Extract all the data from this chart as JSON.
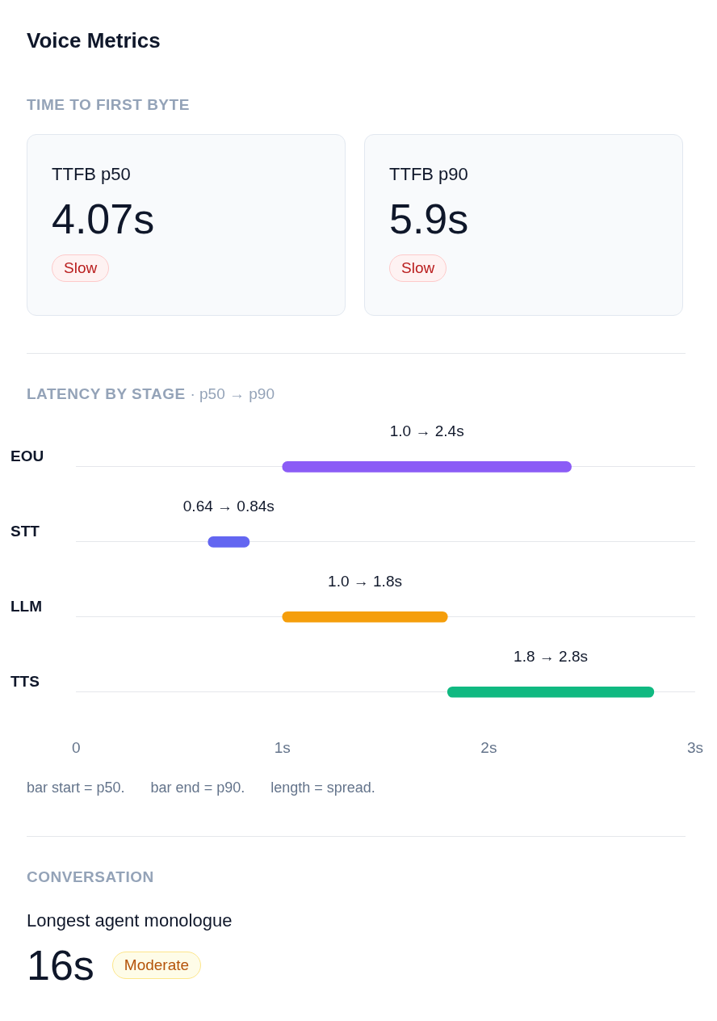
{
  "chart_data": [
    {
      "type": "other",
      "title": "Voice Metrics",
      "subtitle": "TIME TO FIRST BYTE",
      "categories": [
        "TTFB p50",
        "TTFB p90"
      ],
      "values": [
        4.07,
        5.9
      ],
      "value_labels": [
        "4.07s",
        "5.9s"
      ],
      "annotations": [
        "Slow",
        "Slow"
      ]
    },
    {
      "type": "bar",
      "orientation": "horizontal",
      "title": "LATENCY BY STAGE",
      "subtitle": "· p50 → p90",
      "categories": [
        "EOU",
        "STT",
        "LLM",
        "TTS"
      ],
      "base": [
        1.0,
        0.64,
        1.0,
        1.8
      ],
      "values": [
        1.4,
        0.2,
        0.8,
        1.0
      ],
      "colors": [
        "#8b5cf6",
        "#6366f1",
        "#f59e0b",
        "#10b981"
      ],
      "xlim": [
        0,
        3
      ],
      "xticks": [
        0,
        {
          "value": 1,
          "label": "1s"
        },
        {
          "value": 2,
          "label": "2s"
        },
        {
          "value": 3,
          "label": "3s"
        }
      ],
      "grid": "y",
      "legend": false,
      "annotations": [
        "1.0 → 2.4s",
        "0.64 → 0.84s",
        "1.0 → 1.8s",
        "1.8 → 2.8s",
        "bar start = p50.",
        "bar end = p90.",
        "length = spread."
      ]
    },
    {
      "type": "other",
      "subtitle": "CONVERSATION",
      "categories": [
        "Longest agent monologue"
      ],
      "values": [
        16
      ],
      "value_labels": [
        "16s"
      ],
      "annotations": [
        "Moderate"
      ]
    }
  ]
}
